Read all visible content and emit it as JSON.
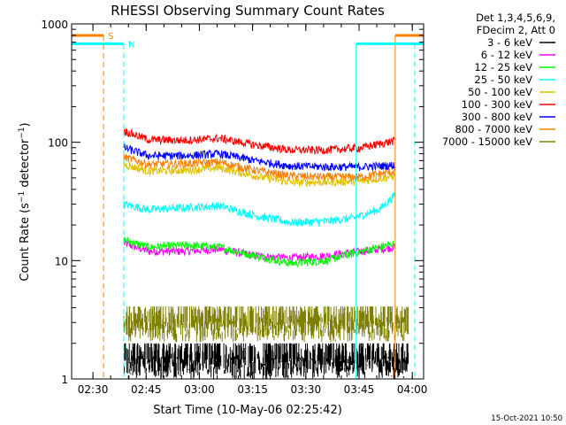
{
  "chart_data": {
    "type": "line",
    "title": "RHESSI Observing Summary Count Rates",
    "xlabel": "Start Time (10-May-06 02:25:42)",
    "ylabel": "Count Rate (s⁻¹ detector⁻¹)",
    "ylabel_main": "Count Rate (s",
    "ylabel_sup1": "−1",
    "ylabel_mid": " detector",
    "ylabel_sup2": "−1",
    "ylabel_end": ")",
    "yscale": "log",
    "ylim": [
      1,
      1000
    ],
    "xlim_minutes": [
      -1.7,
      97.5
    ],
    "x_ticks": [
      {
        "label": "02:30",
        "minute": 4.3
      },
      {
        "label": "02:45",
        "minute": 19.3
      },
      {
        "label": "03:00",
        "minute": 34.3
      },
      {
        "label": "03:15",
        "minute": 49.3
      },
      {
        "label": "03:30",
        "minute": 64.3
      },
      {
        "label": "03:45",
        "minute": 79.3
      },
      {
        "label": "04:00",
        "minute": 94.3
      }
    ],
    "y_ticks": [
      {
        "label": "1",
        "value": 1
      },
      {
        "label": "10",
        "value": 10
      },
      {
        "label": "100",
        "value": 100
      },
      {
        "label": "1000",
        "value": 1000
      }
    ],
    "legend": {
      "placement": "right",
      "header": [
        "Det 1,3,4,5,6,9,",
        "FDecim 2, Att 0"
      ]
    },
    "data_start_minute": 13.0,
    "data_end_minute": 89.5,
    "series": [
      {
        "name": "3 - 6 keV",
        "color": "#000000",
        "profile": [
          [
            13.0,
            1.5
          ],
          [
            93.2,
            1.5
          ]
        ]
      },
      {
        "name": "6 - 12 keV",
        "color": "#ff00ff",
        "profile": [
          [
            13.0,
            14
          ],
          [
            20,
            12
          ],
          [
            30,
            12
          ],
          [
            40,
            12.5
          ],
          [
            50,
            11
          ],
          [
            60,
            10.5
          ],
          [
            70,
            11
          ],
          [
            80,
            12
          ],
          [
            89.5,
            13
          ]
        ]
      },
      {
        "name": "12 - 25 keV",
        "color": "#00ff00",
        "profile": [
          [
            13.0,
            15
          ],
          [
            20,
            13
          ],
          [
            30,
            13.5
          ],
          [
            40,
            13
          ],
          [
            50,
            11
          ],
          [
            60,
            9.5
          ],
          [
            70,
            10
          ],
          [
            80,
            12
          ],
          [
            89.5,
            14
          ]
        ]
      },
      {
        "name": "25 - 50 keV",
        "color": "#00ffff",
        "profile": [
          [
            13.0,
            30
          ],
          [
            20,
            27
          ],
          [
            30,
            28
          ],
          [
            40,
            29
          ],
          [
            50,
            24
          ],
          [
            60,
            21
          ],
          [
            70,
            21.5
          ],
          [
            78,
            23
          ],
          [
            85,
            27
          ],
          [
            89.5,
            36
          ]
        ]
      },
      {
        "name": "50 - 100 keV",
        "color": "#e0c000",
        "profile": [
          [
            13.0,
            65
          ],
          [
            20,
            57
          ],
          [
            30,
            58
          ],
          [
            40,
            61
          ],
          [
            50,
            52
          ],
          [
            60,
            46
          ],
          [
            70,
            46
          ],
          [
            80,
            47
          ],
          [
            89.5,
            52
          ]
        ]
      },
      {
        "name": "100 - 300 keV",
        "color": "#ff0000",
        "profile": [
          [
            13.0,
            125
          ],
          [
            20,
            105
          ],
          [
            30,
            104
          ],
          [
            40,
            108
          ],
          [
            50,
            95
          ],
          [
            60,
            86
          ],
          [
            70,
            86
          ],
          [
            80,
            90
          ],
          [
            89.5,
            103
          ]
        ]
      },
      {
        "name": "300 - 800 keV",
        "color": "#0000ff",
        "profile": [
          [
            13.0,
            90
          ],
          [
            20,
            77
          ],
          [
            30,
            77
          ],
          [
            40,
            80
          ],
          [
            50,
            70
          ],
          [
            60,
            63
          ],
          [
            70,
            62
          ],
          [
            80,
            62
          ],
          [
            89.5,
            64
          ]
        ]
      },
      {
        "name": "800 - 7000 keV",
        "color": "#ff8000",
        "profile": [
          [
            13.0,
            75
          ],
          [
            20,
            65
          ],
          [
            30,
            66
          ],
          [
            40,
            68
          ],
          [
            50,
            58
          ],
          [
            60,
            52
          ],
          [
            70,
            51
          ],
          [
            80,
            51
          ],
          [
            89.5,
            57
          ]
        ]
      },
      {
        "name": "7000 - 15000 keV",
        "color": "#808000",
        "profile": [
          [
            13.0,
            3.0
          ],
          [
            93.2,
            3.0
          ]
        ]
      }
    ],
    "annotations": [
      {
        "text": "S",
        "color": "#ff8000",
        "segments": [
          [
            -1.7,
            7.3
          ],
          [
            89.5,
            97.5
          ]
        ],
        "value": 800,
        "vlines_dashed": [
          7.3
        ],
        "vlines_solid": [
          89.5
        ]
      },
      {
        "text": "N",
        "color": "#00ffff",
        "segments": [
          [
            -1.7,
            13.0
          ],
          [
            78.5,
            97.5
          ]
        ],
        "value": 680,
        "vlines_dashed": [
          13.0,
          95.0
        ],
        "vlines_solid": [
          -1.7,
          78.5
        ]
      }
    ]
  },
  "footer": {
    "date_stamp": "15-Oct-2021 10:50"
  }
}
